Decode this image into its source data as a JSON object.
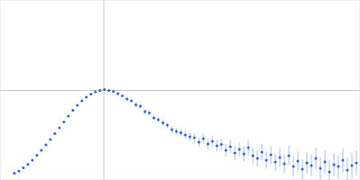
{
  "chart_data": {
    "type": "scatter",
    "color": "#3a66c4",
    "marker": "circle",
    "grid": true,
    "tick_labels": false,
    "xlim": [
      0,
      400
    ],
    "ylim": [
      0,
      200
    ],
    "xticks": [
      115
    ],
    "yticks": [
      100
    ],
    "x": [
      16,
      21,
      26,
      31,
      36,
      41,
      46,
      51,
      56,
      61,
      66,
      71,
      76,
      81,
      86,
      91,
      96,
      101,
      106,
      111,
      116,
      121,
      126,
      131,
      136,
      141,
      146,
      151,
      156,
      161,
      166,
      171,
      176,
      181,
      186,
      191,
      196,
      201,
      206,
      211,
      216,
      221,
      226,
      231,
      236,
      241,
      246,
      251,
      256,
      261,
      266,
      271,
      276,
      281,
      286,
      291,
      296,
      301,
      306,
      311,
      316,
      321,
      326,
      331,
      336,
      341,
      346,
      351,
      356,
      361,
      366,
      371,
      376,
      381,
      386,
      391,
      396
    ],
    "values": [
      7.5,
      10,
      13.5,
      17.5,
      22,
      27.5,
      33,
      39,
      45,
      51.5,
      58,
      64.5,
      71,
      77.5,
      83,
      88,
      92,
      95.5,
      98,
      99.5,
      100.5,
      99.5,
      98.5,
      96,
      93.5,
      90,
      88,
      83.5,
      82,
      76,
      74.5,
      69,
      67,
      63.5,
      61,
      56,
      54,
      52.5,
      50,
      48,
      47,
      42,
      46,
      40,
      43,
      38,
      39.5,
      33,
      37,
      30,
      34,
      29,
      36,
      27,
      24,
      31,
      22,
      28,
      20,
      25,
      18,
      27,
      15,
      21,
      12,
      19,
      16,
      24,
      13,
      20,
      9,
      17,
      15,
      22,
      11,
      16,
      19
    ],
    "errors": [
      0.3,
      0.3,
      0.3,
      0.3,
      0.4,
      0.4,
      0.4,
      0.5,
      0.5,
      0.5,
      0.6,
      0.6,
      0.7,
      0.7,
      0.8,
      0.8,
      0.9,
      1,
      1,
      1.1,
      1.2,
      1.3,
      1.4,
      1.5,
      1.6,
      1.8,
      2,
      2.2,
      2.4,
      2.6,
      2.8,
      3,
      3.2,
      3.4,
      3.6,
      3.8,
      4,
      4.2,
      4.5,
      4.8,
      5,
      5.3,
      5.6,
      5.9,
      6.2,
      6.5,
      6.8,
      7,
      7.3,
      7.6,
      7.9,
      8.2,
      8.5,
      8.7,
      9,
      9.2,
      9.5,
      9.7,
      10,
      10.2,
      10.5,
      10.7,
      11,
      11.2,
      11.5,
      11.7,
      12,
      12.2,
      12.4,
      12.6,
      12.8,
      13,
      13.2,
      13.4,
      13.6,
      13.8,
      14
    ]
  }
}
